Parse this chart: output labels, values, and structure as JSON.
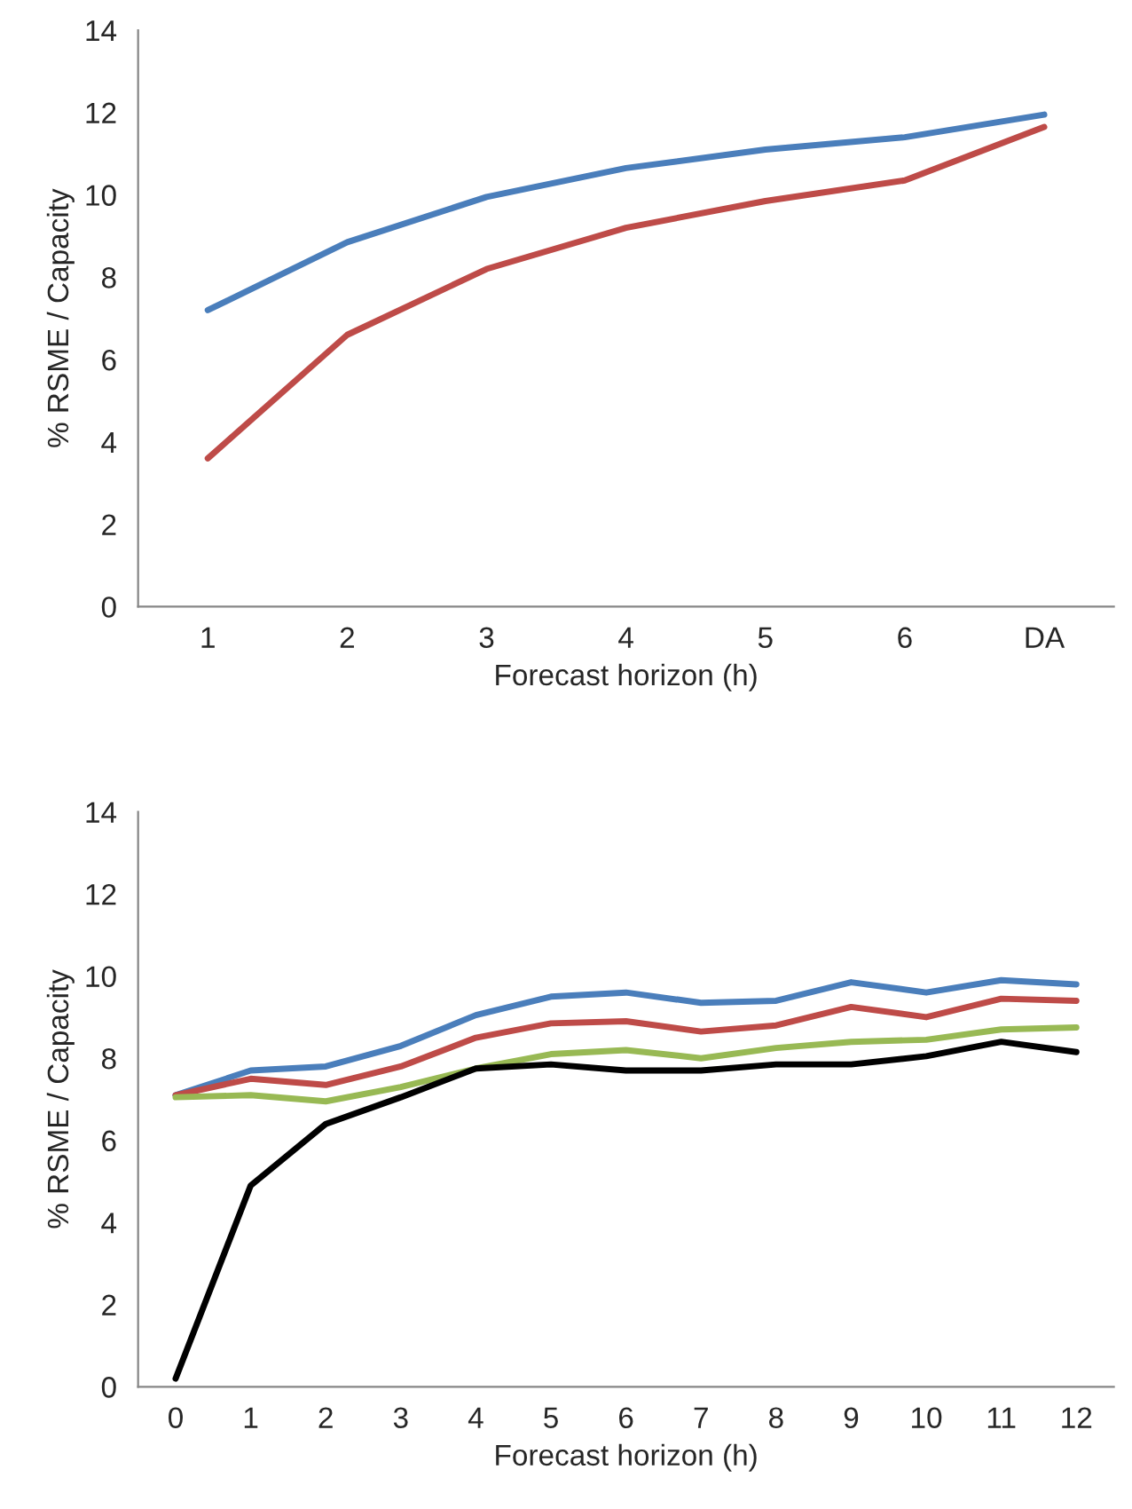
{
  "chart_data": [
    {
      "type": "line",
      "ylabel": "% RSME / Capacity",
      "xlabel": "Forecast horizon (h)",
      "categories": [
        "1",
        "2",
        "3",
        "4",
        "5",
        "6",
        "DA"
      ],
      "ylim": [
        0,
        14
      ],
      "yticks": [
        0,
        2,
        4,
        6,
        8,
        10,
        12,
        14
      ],
      "grid": false,
      "legend": false,
      "series": [
        {
          "color": "#4a7ebb",
          "values": [
            7.2,
            8.85,
            9.95,
            10.65,
            11.1,
            11.4,
            11.95
          ]
        },
        {
          "color": "#be4b48",
          "values": [
            3.6,
            6.6,
            8.2,
            9.2,
            9.85,
            10.35,
            11.65
          ]
        }
      ]
    },
    {
      "type": "line",
      "ylabel": "% RSME / Capacity",
      "xlabel": "Forecast horizon (h)",
      "categories": [
        "0",
        "1",
        "2",
        "3",
        "4",
        "5",
        "6",
        "7",
        "8",
        "9",
        "10",
        "11",
        "12"
      ],
      "ylim": [
        0,
        14
      ],
      "yticks": [
        0,
        2,
        4,
        6,
        8,
        10,
        12,
        14
      ],
      "grid": false,
      "legend": false,
      "series": [
        {
          "color": "#4a7ebb",
          "values": [
            7.1,
            7.7,
            7.8,
            8.3,
            9.05,
            9.5,
            9.6,
            9.35,
            9.4,
            9.85,
            9.6,
            9.9,
            9.8
          ]
        },
        {
          "color": "#be4b48",
          "values": [
            7.1,
            7.5,
            7.35,
            7.8,
            8.5,
            8.85,
            8.9,
            8.65,
            8.8,
            9.25,
            9.0,
            9.45,
            9.4
          ]
        },
        {
          "color": "#98b954",
          "values": [
            7.05,
            7.1,
            6.95,
            7.3,
            7.75,
            8.1,
            8.2,
            8.0,
            8.25,
            8.4,
            8.45,
            8.7,
            8.75
          ]
        },
        {
          "color": "#000000",
          "values": [
            0.2,
            4.9,
            6.4,
            7.05,
            7.75,
            7.85,
            7.7,
            7.7,
            7.85,
            7.85,
            8.05,
            8.4,
            8.15
          ]
        }
      ]
    }
  ]
}
